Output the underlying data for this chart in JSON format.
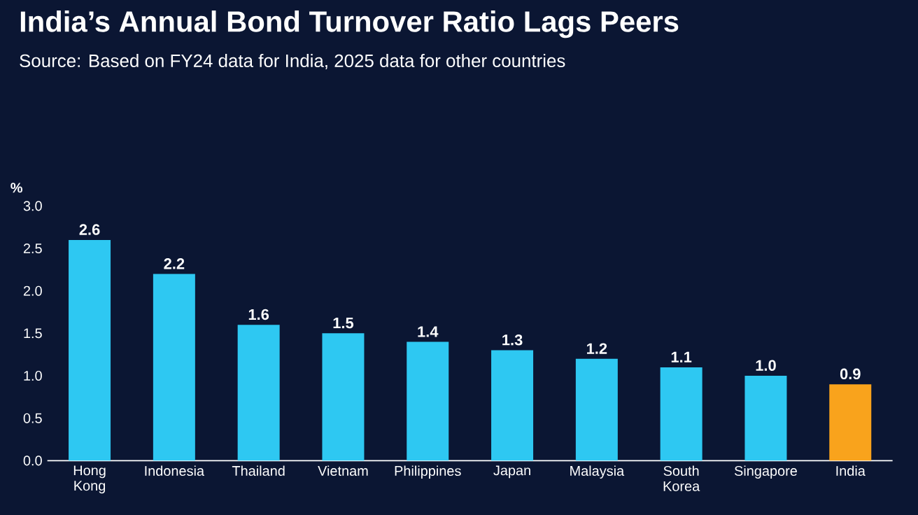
{
  "chart_data": {
    "type": "bar",
    "title": "India’s Annual Bond Turnover Ratio Lags Peers",
    "subtitle": "Source: Based on FY24 data for India, 2025 data for other countries",
    "ylabel": "%",
    "categories": [
      "Hong Kong",
      "Indonesia",
      "Thailand",
      "Vietnam",
      "Philippines",
      "Japan",
      "Malaysia",
      "South Korea",
      "Singapore",
      "India"
    ],
    "values": [
      2.6,
      2.2,
      1.6,
      1.5,
      1.4,
      1.3,
      1.2,
      1.1,
      1.0,
      0.9
    ],
    "colors": [
      "#2ec8f2",
      "#2ec8f2",
      "#2ec8f2",
      "#2ec8f2",
      "#2ec8f2",
      "#2ec8f2",
      "#2ec8f2",
      "#2ec8f2",
      "#2ec8f2",
      "#f9a31c"
    ],
    "ylim": [
      0,
      3
    ],
    "yticks": [
      {
        "value": 0,
        "label": "0.0"
      },
      {
        "value": 0.5,
        "label": "0.5"
      },
      {
        "value": 1,
        "label": "1.0"
      },
      {
        "value": 1.5,
        "label": "1.5"
      },
      {
        "value": 2,
        "label": "2.0"
      },
      {
        "value": 2.5,
        "label": "2.5"
      },
      {
        "value": 3,
        "label": "3.0"
      }
    ],
    "value_labels": [
      "2.6",
      "2.2",
      "1.6",
      "1.5",
      "1.4",
      "1.3",
      "1.2",
      "1.1",
      "1.0",
      "0.9"
    ]
  }
}
